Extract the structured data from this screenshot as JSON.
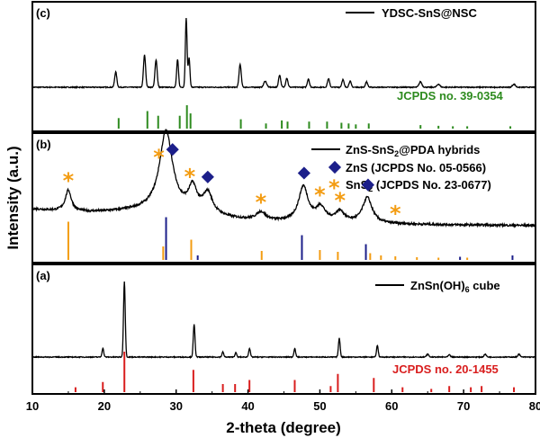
{
  "chart_data": {
    "type": "line",
    "xlabel": "2-theta (degree)",
    "ylabel": "Intensity (a.u.)",
    "xlim": [
      10,
      80
    ],
    "xticks": [
      "10",
      "20",
      "30",
      "40",
      "50",
      "60",
      "70",
      "80"
    ],
    "colors": {
      "pattern": "#000000",
      "ref_c": "#2e8b1f",
      "ref_b_sns2": "#f39c12",
      "ref_b_zns": "#1c1f8a",
      "ref_a": "#d91e1e",
      "star": "#f39c12",
      "diamond": "#1c1f8a"
    },
    "panels": [
      {
        "label": "(c)",
        "legend": "YDSC-SnS@NSC",
        "reference_label": "JCPDS no. 39-0354",
        "baseline": 0.1,
        "peaks": [
          {
            "x": 21.6,
            "h": 0.2,
            "w": 0.15
          },
          {
            "x": 25.6,
            "h": 0.42,
            "w": 0.15
          },
          {
            "x": 27.2,
            "h": 0.36,
            "w": 0.15
          },
          {
            "x": 30.2,
            "h": 0.36,
            "w": 0.13
          },
          {
            "x": 31.4,
            "h": 0.9,
            "w": 0.12
          },
          {
            "x": 31.8,
            "h": 0.38,
            "w": 0.12
          },
          {
            "x": 38.9,
            "h": 0.3,
            "w": 0.15
          },
          {
            "x": 42.4,
            "h": 0.08,
            "w": 0.2
          },
          {
            "x": 44.4,
            "h": 0.16,
            "w": 0.15
          },
          {
            "x": 45.4,
            "h": 0.12,
            "w": 0.15
          },
          {
            "x": 48.4,
            "h": 0.11,
            "w": 0.15
          },
          {
            "x": 51.2,
            "h": 0.11,
            "w": 0.15
          },
          {
            "x": 53.2,
            "h": 0.1,
            "w": 0.15
          },
          {
            "x": 54.2,
            "h": 0.08,
            "w": 0.15
          },
          {
            "x": 56.5,
            "h": 0.07,
            "w": 0.15
          },
          {
            "x": 64.0,
            "h": 0.07,
            "w": 0.2
          },
          {
            "x": 66.5,
            "h": 0.04,
            "w": 0.2
          },
          {
            "x": 77.0,
            "h": 0.04,
            "w": 0.2
          }
        ],
        "reference_lines": [
          {
            "x": 22.0,
            "h": 0.45
          },
          {
            "x": 26.0,
            "h": 0.75
          },
          {
            "x": 27.5,
            "h": 0.55
          },
          {
            "x": 30.5,
            "h": 0.55
          },
          {
            "x": 31.5,
            "h": 1.0
          },
          {
            "x": 32.0,
            "h": 0.65
          },
          {
            "x": 39.0,
            "h": 0.4
          },
          {
            "x": 42.5,
            "h": 0.22
          },
          {
            "x": 44.7,
            "h": 0.35
          },
          {
            "x": 45.5,
            "h": 0.3
          },
          {
            "x": 48.5,
            "h": 0.3
          },
          {
            "x": 51.0,
            "h": 0.3
          },
          {
            "x": 53.0,
            "h": 0.25
          },
          {
            "x": 54.0,
            "h": 0.22
          },
          {
            "x": 55.0,
            "h": 0.18
          },
          {
            "x": 56.8,
            "h": 0.22
          },
          {
            "x": 64.0,
            "h": 0.15
          },
          {
            "x": 66.5,
            "h": 0.12
          },
          {
            "x": 68.5,
            "h": 0.1
          },
          {
            "x": 70.5,
            "h": 0.1
          },
          {
            "x": 76.5,
            "h": 0.1
          }
        ]
      },
      {
        "label": "(b)",
        "legend": [
          "ZnS-SnS",
          "2",
          "@PDA hybrids"
        ],
        "legend_zns": "ZnS (JCPDS No. 05-0566)",
        "legend_sns2": [
          "SnS",
          "2",
          " (JCPDS No. 23-0677)"
        ],
        "baseline": 0.22,
        "broad_peaks": [
          {
            "x": 15.0,
            "h": 0.18,
            "w": 0.5
          },
          {
            "x": 28.6,
            "h": 0.68,
            "w": 1.1
          },
          {
            "x": 32.3,
            "h": 0.2,
            "w": 0.7
          },
          {
            "x": 34.4,
            "h": 0.18,
            "w": 0.8
          },
          {
            "x": 41.8,
            "h": 0.07,
            "w": 0.8
          },
          {
            "x": 47.7,
            "h": 0.3,
            "w": 0.8
          },
          {
            "x": 50.1,
            "h": 0.12,
            "w": 0.8
          },
          {
            "x": 52.8,
            "h": 0.09,
            "w": 0.8
          },
          {
            "x": 56.6,
            "h": 0.22,
            "w": 0.8
          }
        ],
        "sns2_reference_lines": [
          {
            "x": 15.0,
            "h": 0.85
          },
          {
            "x": 28.2,
            "h": 0.3
          },
          {
            "x": 32.1,
            "h": 0.45
          },
          {
            "x": 41.9,
            "h": 0.2
          },
          {
            "x": 50.0,
            "h": 0.22
          },
          {
            "x": 52.5,
            "h": 0.18
          },
          {
            "x": 57.0,
            "h": 0.15
          },
          {
            "x": 58.5,
            "h": 0.1
          },
          {
            "x": 60.5,
            "h": 0.08
          },
          {
            "x": 63.5,
            "h": 0.06
          },
          {
            "x": 66.5,
            "h": 0.05
          },
          {
            "x": 70.5,
            "h": 0.05
          }
        ],
        "zns_reference_lines": [
          {
            "x": 28.6,
            "h": 0.95
          },
          {
            "x": 33.0,
            "h": 0.1
          },
          {
            "x": 47.5,
            "h": 0.55
          },
          {
            "x": 56.4,
            "h": 0.35
          },
          {
            "x": 69.5,
            "h": 0.07
          },
          {
            "x": 76.8,
            "h": 0.1
          }
        ],
        "star_markers": [
          15.0,
          27.6,
          31.9,
          41.8,
          50.0,
          52.8,
          60.5
        ],
        "diamond_markers": [
          29.5,
          34.4,
          47.8,
          56.7
        ]
      },
      {
        "label": "(a)",
        "legend": [
          "ZnSn(OH)",
          "6",
          " cube"
        ],
        "reference_label": "JCPDS no. 20-1455",
        "baseline": 0.1,
        "peaks": [
          {
            "x": 19.8,
            "h": 0.12,
            "w": 0.12
          },
          {
            "x": 22.8,
            "h": 1.05,
            "w": 0.12
          },
          {
            "x": 32.5,
            "h": 0.45,
            "w": 0.12
          },
          {
            "x": 36.5,
            "h": 0.07,
            "w": 0.12
          },
          {
            "x": 38.3,
            "h": 0.06,
            "w": 0.12
          },
          {
            "x": 40.2,
            "h": 0.12,
            "w": 0.12
          },
          {
            "x": 46.5,
            "h": 0.12,
            "w": 0.12
          },
          {
            "x": 52.7,
            "h": 0.26,
            "w": 0.12
          },
          {
            "x": 58.0,
            "h": 0.16,
            "w": 0.12
          },
          {
            "x": 65.0,
            "h": 0.04,
            "w": 0.15
          },
          {
            "x": 68.0,
            "h": 0.03,
            "w": 0.15
          },
          {
            "x": 73.0,
            "h": 0.04,
            "w": 0.15
          },
          {
            "x": 77.7,
            "h": 0.04,
            "w": 0.15
          }
        ],
        "reference_lines": [
          {
            "x": 16.0,
            "h": 0.12
          },
          {
            "x": 19.8,
            "h": 0.25
          },
          {
            "x": 22.8,
            "h": 1.0
          },
          {
            "x": 32.4,
            "h": 0.55
          },
          {
            "x": 36.5,
            "h": 0.2
          },
          {
            "x": 38.2,
            "h": 0.2
          },
          {
            "x": 40.2,
            "h": 0.3
          },
          {
            "x": 46.5,
            "h": 0.3
          },
          {
            "x": 51.5,
            "h": 0.15
          },
          {
            "x": 52.5,
            "h": 0.45
          },
          {
            "x": 57.5,
            "h": 0.35
          },
          {
            "x": 61.5,
            "h": 0.12
          },
          {
            "x": 65.5,
            "h": 0.08
          },
          {
            "x": 68.0,
            "h": 0.15
          },
          {
            "x": 71.0,
            "h": 0.12
          },
          {
            "x": 72.5,
            "h": 0.15
          },
          {
            "x": 77.0,
            "h": 0.12
          }
        ]
      }
    ]
  }
}
